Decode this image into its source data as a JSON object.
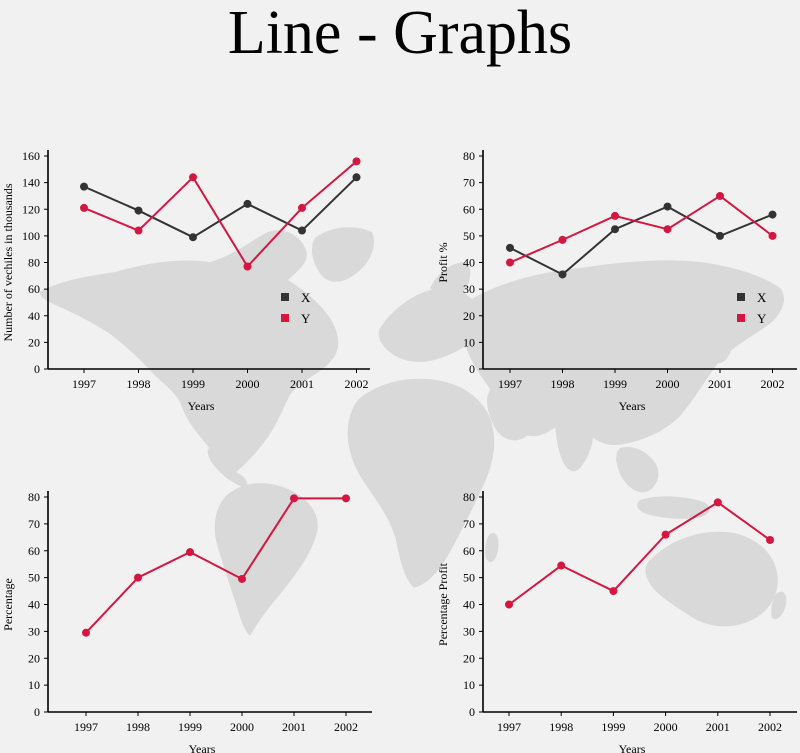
{
  "page": {
    "title": "Line - Graphs"
  },
  "colors": {
    "x": "#333333",
    "y": "#d41640",
    "map": "#d9d9d9",
    "background": "#f1f1f1"
  },
  "chart_data": [
    {
      "type": "line",
      "x": [
        "1997",
        "1998",
        "1999",
        "2000",
        "2001",
        "2002"
      ],
      "xlabel": "Years",
      "ylabel": "Number of vechiles in thousands",
      "ylim": [
        0,
        160
      ],
      "yticks": [
        0,
        20,
        40,
        60,
        80,
        100,
        120,
        140,
        160
      ],
      "legend": "right",
      "series": [
        {
          "name": "X",
          "color": "#333333",
          "values": [
            137,
            119,
            99,
            124,
            104,
            144
          ]
        },
        {
          "name": "Y",
          "color": "#d41640",
          "values": [
            121,
            104,
            144,
            77,
            121,
            156
          ]
        }
      ]
    },
    {
      "type": "line",
      "x": [
        "1997",
        "1998",
        "1999",
        "2000",
        "2001",
        "2002"
      ],
      "xlabel": "Years",
      "ylabel": "Profit %",
      "ylim": [
        0,
        80
      ],
      "yticks": [
        0,
        10,
        20,
        30,
        40,
        50,
        60,
        70,
        80
      ],
      "legend": "right",
      "series": [
        {
          "name": "X",
          "color": "#333333",
          "values": [
            45.5,
            35.5,
            52.5,
            61,
            50,
            58
          ]
        },
        {
          "name": "Y",
          "color": "#d41640",
          "values": [
            40,
            48.5,
            57.5,
            52.5,
            65,
            50
          ]
        }
      ]
    },
    {
      "type": "line",
      "x": [
        "1997",
        "1998",
        "1999",
        "2000",
        "2001",
        "2002"
      ],
      "xlabel": "Years",
      "ylabel": "Percentage",
      "ylim": [
        0,
        80
      ],
      "yticks": [
        0,
        10,
        20,
        30,
        40,
        50,
        60,
        70,
        80
      ],
      "series": [
        {
          "color": "#d41640",
          "values": [
            29.5,
            50,
            59.5,
            49.5,
            79.5,
            79.5
          ]
        }
      ]
    },
    {
      "type": "line",
      "x": [
        "1997",
        "1998",
        "1999",
        "2000",
        "2001",
        "2002"
      ],
      "xlabel": "Years",
      "ylabel": "Percentage Profit",
      "ylim": [
        0,
        80
      ],
      "yticks": [
        0,
        10,
        20,
        30,
        40,
        50,
        60,
        70,
        80
      ],
      "series": [
        {
          "color": "#d41640",
          "values": [
            40,
            54.5,
            45,
            66,
            78,
            64
          ]
        }
      ]
    }
  ]
}
